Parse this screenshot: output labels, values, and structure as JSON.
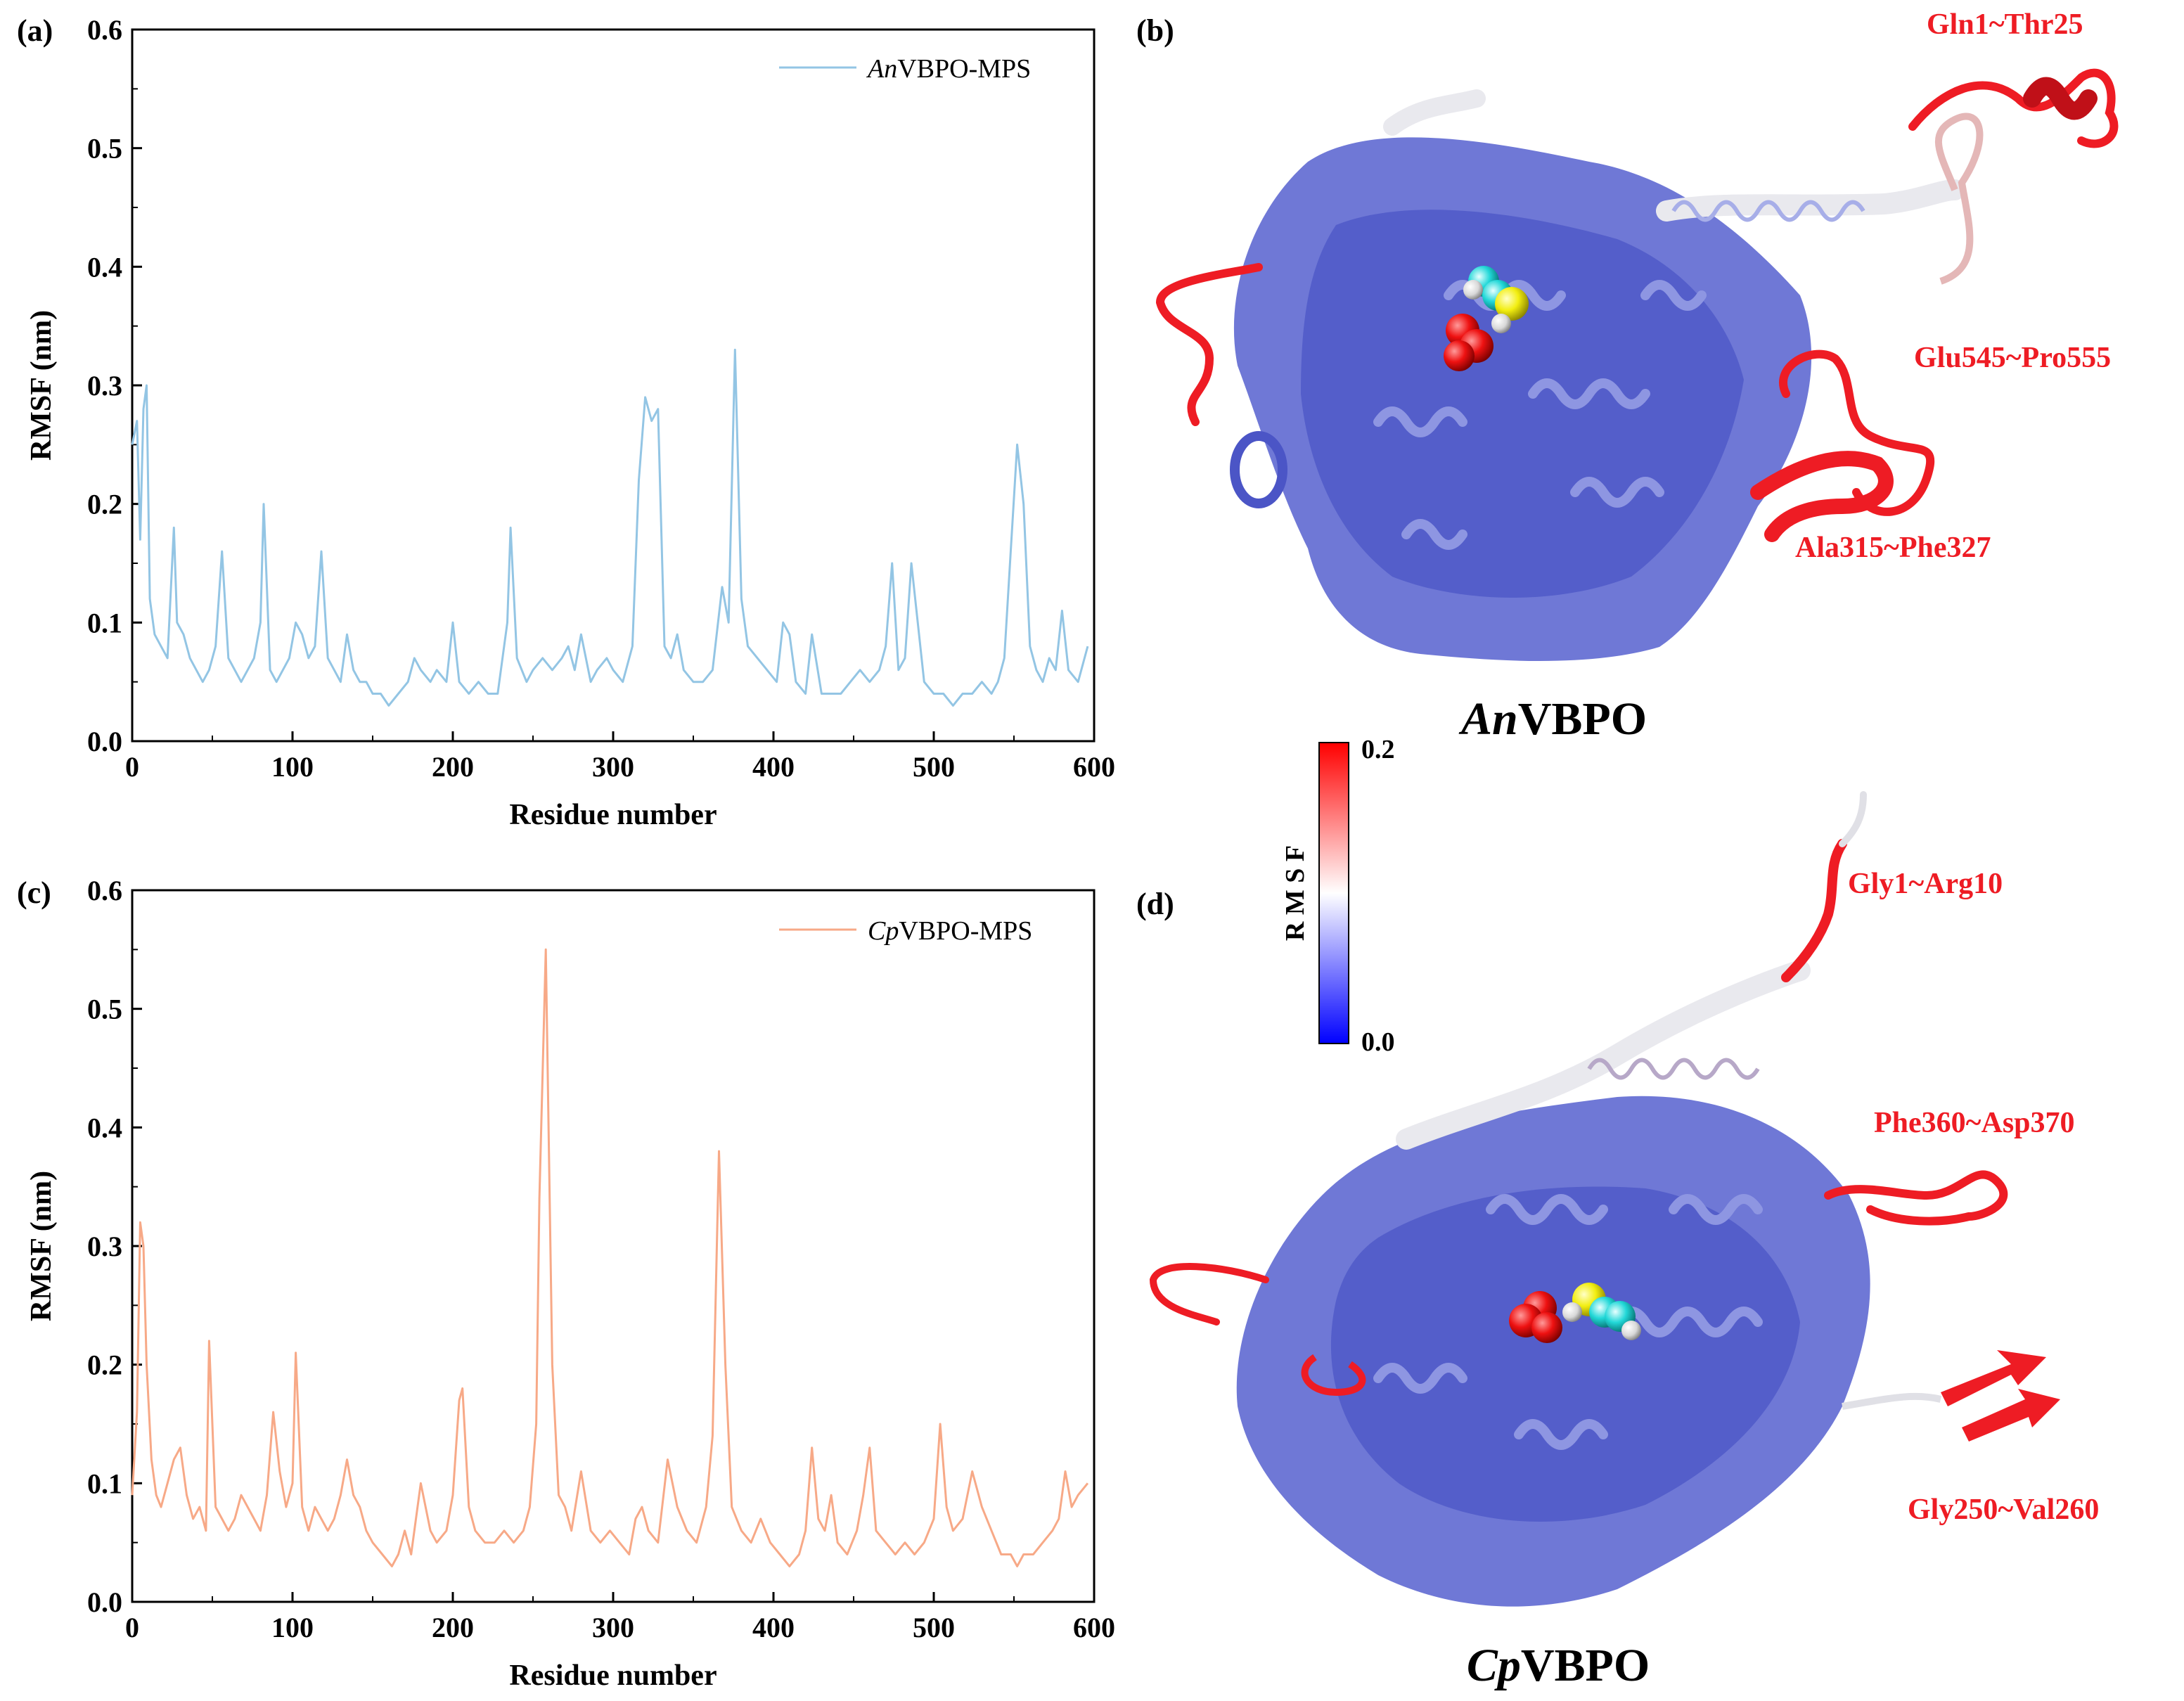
{
  "colors": {
    "an_line": "#93c5e4",
    "cp_line": "#f7a987",
    "annotation": "#ee1c24",
    "ribbon_blue": "#6f78d6",
    "ribbon_dark": "#4b55c6",
    "ribbon_white": "#e9e9ee"
  },
  "panels": {
    "a": {
      "label": "(a)"
    },
    "b": {
      "label": "(b)"
    },
    "c": {
      "label": "(c)"
    },
    "d": {
      "label": "(d)"
    }
  },
  "chart_data": [
    {
      "type": "line",
      "panel": "(a)",
      "title": "",
      "xlabel": "Residue number",
      "ylabel": "RMSF (nm)",
      "xlim": [
        0,
        600
      ],
      "ylim": [
        0.0,
        0.6
      ],
      "xticks": [
        "0",
        "100",
        "200",
        "300",
        "400",
        "500",
        "600"
      ],
      "yticks": [
        "0.0",
        "0.1",
        "0.2",
        "0.3",
        "0.4",
        "0.5",
        "0.6"
      ],
      "legend": {
        "position": "top-right"
      },
      "series": [
        {
          "name": "AnVBPO-MPS",
          "name_italic": "An",
          "name_rest": "VBPO-MPS",
          "x": [
            0,
            3,
            5,
            7,
            9,
            11,
            14,
            18,
            22,
            26,
            28,
            32,
            36,
            40,
            44,
            48,
            52,
            56,
            60,
            64,
            68,
            72,
            76,
            80,
            82,
            86,
            90,
            94,
            98,
            102,
            106,
            110,
            114,
            118,
            122,
            126,
            130,
            134,
            138,
            142,
            146,
            150,
            155,
            160,
            166,
            172,
            176,
            180,
            186,
            190,
            196,
            200,
            204,
            210,
            216,
            222,
            228,
            234,
            236,
            240,
            246,
            250,
            256,
            262,
            268,
            272,
            276,
            280,
            286,
            290,
            296,
            300,
            306,
            312,
            316,
            320,
            324,
            328,
            332,
            336,
            340,
            344,
            350,
            356,
            362,
            368,
            372,
            376,
            380,
            384,
            390,
            396,
            402,
            406,
            410,
            414,
            420,
            424,
            430,
            436,
            442,
            448,
            454,
            460,
            466,
            470,
            474,
            478,
            482,
            486,
            490,
            494,
            500,
            506,
            512,
            518,
            524,
            530,
            536,
            540,
            544,
            548,
            552,
            556,
            560,
            564,
            568,
            572,
            576,
            580,
            584,
            590,
            596
          ],
          "y": [
            0.25,
            0.27,
            0.17,
            0.28,
            0.3,
            0.12,
            0.09,
            0.08,
            0.07,
            0.18,
            0.1,
            0.09,
            0.07,
            0.06,
            0.05,
            0.06,
            0.08,
            0.16,
            0.07,
            0.06,
            0.05,
            0.06,
            0.07,
            0.1,
            0.2,
            0.06,
            0.05,
            0.06,
            0.07,
            0.1,
            0.09,
            0.07,
            0.08,
            0.16,
            0.07,
            0.06,
            0.05,
            0.09,
            0.06,
            0.05,
            0.05,
            0.04,
            0.04,
            0.03,
            0.04,
            0.05,
            0.07,
            0.06,
            0.05,
            0.06,
            0.05,
            0.1,
            0.05,
            0.04,
            0.05,
            0.04,
            0.04,
            0.1,
            0.18,
            0.07,
            0.05,
            0.06,
            0.07,
            0.06,
            0.07,
            0.08,
            0.06,
            0.09,
            0.05,
            0.06,
            0.07,
            0.06,
            0.05,
            0.08,
            0.22,
            0.29,
            0.27,
            0.28,
            0.08,
            0.07,
            0.09,
            0.06,
            0.05,
            0.05,
            0.06,
            0.13,
            0.1,
            0.33,
            0.12,
            0.08,
            0.07,
            0.06,
            0.05,
            0.1,
            0.09,
            0.05,
            0.04,
            0.09,
            0.04,
            0.04,
            0.04,
            0.05,
            0.06,
            0.05,
            0.06,
            0.08,
            0.15,
            0.06,
            0.07,
            0.15,
            0.1,
            0.05,
            0.04,
            0.04,
            0.03,
            0.04,
            0.04,
            0.05,
            0.04,
            0.05,
            0.07,
            0.16,
            0.25,
            0.2,
            0.08,
            0.06,
            0.05,
            0.07,
            0.06,
            0.11,
            0.06,
            0.05,
            0.08
          ]
        }
      ]
    },
    {
      "type": "line",
      "panel": "(c)",
      "title": "",
      "xlabel": "Residue number",
      "ylabel": "RMSF (nm)",
      "xlim": [
        0,
        600
      ],
      "ylim": [
        0.0,
        0.6
      ],
      "xticks": [
        "0",
        "100",
        "200",
        "300",
        "400",
        "500",
        "600"
      ],
      "yticks": [
        "0.0",
        "0.1",
        "0.2",
        "0.3",
        "0.4",
        "0.5",
        "0.6"
      ],
      "legend": {
        "position": "top-right"
      },
      "series": [
        {
          "name": "CpVBPO-MPS",
          "name_italic": "Cp",
          "name_rest": "VBPO-MPS",
          "x": [
            0,
            3,
            5,
            7,
            9,
            12,
            15,
            18,
            22,
            26,
            30,
            34,
            38,
            42,
            46,
            48,
            52,
            56,
            60,
            64,
            68,
            72,
            76,
            80,
            84,
            88,
            92,
            96,
            100,
            102,
            106,
            110,
            114,
            118,
            122,
            126,
            130,
            134,
            138,
            142,
            146,
            150,
            156,
            162,
            166,
            170,
            174,
            180,
            186,
            190,
            196,
            200,
            204,
            206,
            210,
            214,
            220,
            226,
            232,
            238,
            244,
            248,
            252,
            254,
            258,
            262,
            266,
            270,
            274,
            280,
            286,
            292,
            298,
            304,
            310,
            314,
            318,
            322,
            328,
            334,
            340,
            346,
            352,
            358,
            362,
            366,
            370,
            374,
            380,
            386,
            392,
            398,
            404,
            410,
            416,
            420,
            424,
            428,
            432,
            436,
            440,
            446,
            452,
            456,
            460,
            464,
            470,
            476,
            482,
            488,
            494,
            500,
            504,
            508,
            512,
            518,
            524,
            530,
            536,
            542,
            548,
            552,
            556,
            562,
            568,
            574,
            578,
            582,
            586,
            590,
            596
          ],
          "y": [
            0.09,
            0.16,
            0.32,
            0.3,
            0.2,
            0.12,
            0.09,
            0.08,
            0.1,
            0.12,
            0.13,
            0.09,
            0.07,
            0.08,
            0.06,
            0.22,
            0.08,
            0.07,
            0.06,
            0.07,
            0.09,
            0.08,
            0.07,
            0.06,
            0.09,
            0.16,
            0.11,
            0.08,
            0.1,
            0.21,
            0.08,
            0.06,
            0.08,
            0.07,
            0.06,
            0.07,
            0.09,
            0.12,
            0.09,
            0.08,
            0.06,
            0.05,
            0.04,
            0.03,
            0.04,
            0.06,
            0.04,
            0.1,
            0.06,
            0.05,
            0.06,
            0.09,
            0.17,
            0.18,
            0.08,
            0.06,
            0.05,
            0.05,
            0.06,
            0.05,
            0.06,
            0.08,
            0.15,
            0.34,
            0.55,
            0.2,
            0.09,
            0.08,
            0.06,
            0.11,
            0.06,
            0.05,
            0.06,
            0.05,
            0.04,
            0.07,
            0.08,
            0.06,
            0.05,
            0.12,
            0.08,
            0.06,
            0.05,
            0.08,
            0.14,
            0.38,
            0.2,
            0.08,
            0.06,
            0.05,
            0.07,
            0.05,
            0.04,
            0.03,
            0.04,
            0.06,
            0.13,
            0.07,
            0.06,
            0.09,
            0.05,
            0.04,
            0.06,
            0.09,
            0.13,
            0.06,
            0.05,
            0.04,
            0.05,
            0.04,
            0.05,
            0.07,
            0.15,
            0.08,
            0.06,
            0.07,
            0.11,
            0.08,
            0.06,
            0.04,
            0.04,
            0.03,
            0.04,
            0.04,
            0.05,
            0.06,
            0.07,
            0.11,
            0.08,
            0.09,
            0.1
          ]
        }
      ]
    }
  ],
  "structures": {
    "an": {
      "title_italic": "An",
      "title_rest": "VBPO",
      "regions": [
        {
          "label": "Gln1~Thr25"
        },
        {
          "label": "Glu545~Pro555"
        },
        {
          "label": "Ala315~Phe327"
        }
      ]
    },
    "cp": {
      "title_italic": "Cp",
      "title_rest": "VBPO",
      "regions": [
        {
          "label": "Gly1~Arg10"
        },
        {
          "label": "Phe360~Asp370"
        },
        {
          "label": "Gly250~Val260"
        }
      ]
    }
  },
  "colorbar": {
    "title": "R M S F",
    "max_label": "0.2",
    "min_label": "0.0",
    "max_value": 0.2,
    "min_value": 0.0
  }
}
